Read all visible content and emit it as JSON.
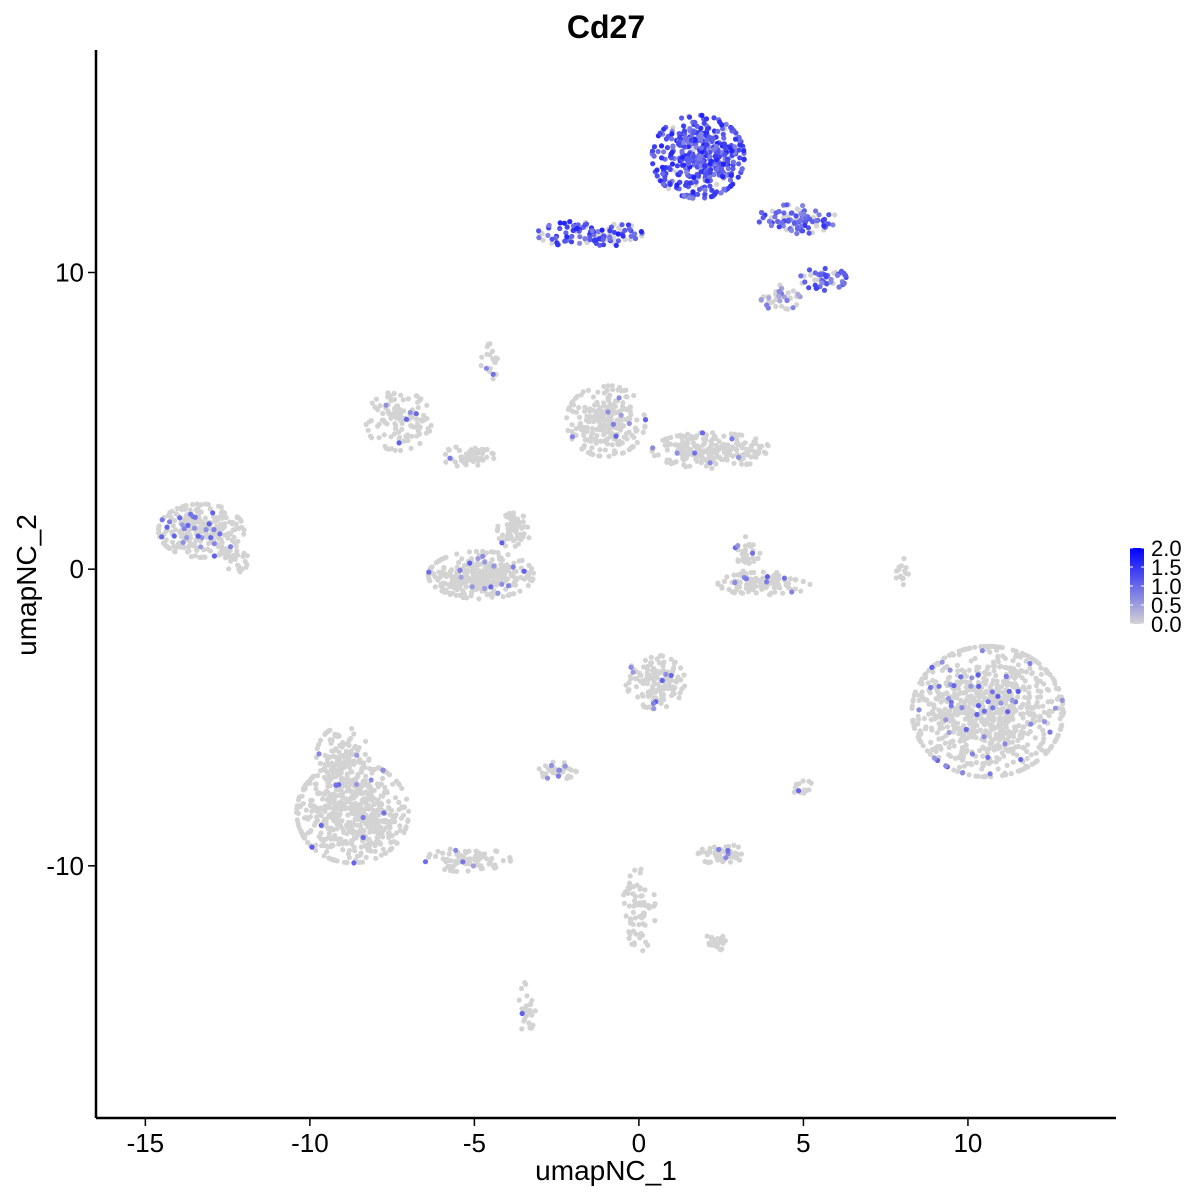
{
  "chart_data": {
    "type": "scatter",
    "title": "Cd27",
    "xlabel": "umapNC_1",
    "ylabel": "umapNC_2",
    "xlim": [
      -16.5,
      14.5
    ],
    "ylim": [
      -18.5,
      17.5
    ],
    "x_ticks": [
      -15,
      -10,
      -5,
      0,
      5,
      10
    ],
    "x_tick_labels": [
      "-15",
      "-10",
      "-5",
      "0",
      "5",
      "10"
    ],
    "y_ticks": [
      -10,
      0,
      10
    ],
    "y_tick_labels": [
      "-10",
      "0",
      "10"
    ],
    "grid": false,
    "legend": {
      "position": "right",
      "min": 0.0,
      "max": 2.0,
      "ticks": [
        0.0,
        0.5,
        1.0,
        1.5,
        2.0
      ],
      "tick_labels": [
        "0.0",
        "0.5",
        "1.0",
        "1.5",
        "2.0"
      ],
      "color_low": "#d3d3d3",
      "color_high": "#0000ff"
    },
    "colors": {
      "low": "#d3d3d3",
      "high": "#0000ff"
    },
    "clusters": [
      {
        "cx": 1.8,
        "cy": 13.9,
        "rx": 1.4,
        "ry": 1.4,
        "n": 420,
        "expr": 1.2,
        "frac": 0.9
      },
      {
        "cx": -1.5,
        "cy": 11.3,
        "rx": 1.6,
        "ry": 0.45,
        "n": 120,
        "expr": 1.2,
        "frac": 0.7
      },
      {
        "cx": 4.8,
        "cy": 11.8,
        "rx": 1.2,
        "ry": 0.5,
        "n": 90,
        "expr": 1.1,
        "frac": 0.75
      },
      {
        "cx": 5.6,
        "cy": 9.8,
        "rx": 0.7,
        "ry": 0.4,
        "n": 50,
        "expr": 1.0,
        "frac": 0.7
      },
      {
        "cx": 4.3,
        "cy": 9.2,
        "rx": 0.6,
        "ry": 0.5,
        "n": 40,
        "expr": 0.6,
        "frac": 0.3
      },
      {
        "cx": -13.3,
        "cy": 1.3,
        "rx": 1.3,
        "ry": 0.9,
        "n": 280,
        "expr": 0.8,
        "frac": 0.1
      },
      {
        "cx": -12.2,
        "cy": 0.3,
        "rx": 0.4,
        "ry": 0.4,
        "n": 30,
        "expr": 0.7,
        "frac": 0.05
      },
      {
        "cx": -7.3,
        "cy": 5.0,
        "rx": 1.0,
        "ry": 1.0,
        "n": 120,
        "expr": 0.8,
        "frac": 0.03
      },
      {
        "cx": -5.2,
        "cy": 3.8,
        "rx": 0.8,
        "ry": 0.35,
        "n": 60,
        "expr": 0.8,
        "frac": 0.02
      },
      {
        "cx": -4.8,
        "cy": -0.2,
        "rx": 1.6,
        "ry": 0.8,
        "n": 320,
        "expr": 0.8,
        "frac": 0.04
      },
      {
        "cx": -3.8,
        "cy": 1.3,
        "rx": 0.5,
        "ry": 0.6,
        "n": 60,
        "expr": 0.8,
        "frac": 0.02
      },
      {
        "cx": -1.0,
        "cy": 5.0,
        "rx": 1.2,
        "ry": 1.2,
        "n": 240,
        "expr": 0.8,
        "frac": 0.04
      },
      {
        "cx": 2.2,
        "cy": 4.0,
        "rx": 1.8,
        "ry": 0.6,
        "n": 220,
        "expr": 0.8,
        "frac": 0.03
      },
      {
        "cx": 3.8,
        "cy": -0.5,
        "rx": 1.4,
        "ry": 0.4,
        "n": 120,
        "expr": 0.8,
        "frac": 0.03
      },
      {
        "cx": 3.3,
        "cy": 0.5,
        "rx": 0.4,
        "ry": 0.6,
        "n": 30,
        "expr": 0.8,
        "frac": 0.05
      },
      {
        "cx": 10.6,
        "cy": -4.8,
        "rx": 2.3,
        "ry": 2.2,
        "n": 900,
        "expr": 0.8,
        "frac": 0.05
      },
      {
        "cx": 0.5,
        "cy": -3.8,
        "rx": 0.9,
        "ry": 0.9,
        "n": 150,
        "expr": 0.8,
        "frac": 0.06
      },
      {
        "cx": -8.7,
        "cy": -8.2,
        "rx": 1.7,
        "ry": 1.7,
        "n": 600,
        "expr": 0.8,
        "frac": 0.02
      },
      {
        "cx": -9.0,
        "cy": -6.3,
        "rx": 0.8,
        "ry": 1.0,
        "n": 120,
        "expr": 0.8,
        "frac": 0.02
      },
      {
        "cx": -5.2,
        "cy": -9.8,
        "rx": 1.3,
        "ry": 0.4,
        "n": 80,
        "expr": 0.8,
        "frac": 0.03
      },
      {
        "cx": -2.5,
        "cy": -6.8,
        "rx": 0.6,
        "ry": 0.3,
        "n": 40,
        "expr": 0.8,
        "frac": 0.15
      },
      {
        "cx": 2.5,
        "cy": -9.6,
        "rx": 0.7,
        "ry": 0.35,
        "n": 50,
        "expr": 0.8,
        "frac": 0.08
      },
      {
        "cx": 0.0,
        "cy": -11.5,
        "rx": 0.5,
        "ry": 1.4,
        "n": 70,
        "expr": 0.8,
        "frac": 0.0
      },
      {
        "cx": 2.4,
        "cy": -12.6,
        "rx": 0.5,
        "ry": 0.3,
        "n": 25,
        "expr": 0.8,
        "frac": 0.0
      },
      {
        "cx": -3.4,
        "cy": -14.8,
        "rx": 0.25,
        "ry": 0.9,
        "n": 30,
        "expr": 0.8,
        "frac": 0.05
      },
      {
        "cx": -4.5,
        "cy": 7.0,
        "rx": 0.3,
        "ry": 0.6,
        "n": 20,
        "expr": 0.8,
        "frac": 0.15
      },
      {
        "cx": 8.0,
        "cy": 0.0,
        "rx": 0.2,
        "ry": 0.6,
        "n": 15,
        "expr": 0.8,
        "frac": 0.0
      },
      {
        "cx": 5.0,
        "cy": -7.4,
        "rx": 0.3,
        "ry": 0.3,
        "n": 15,
        "expr": 0.8,
        "frac": 0.05
      }
    ]
  }
}
